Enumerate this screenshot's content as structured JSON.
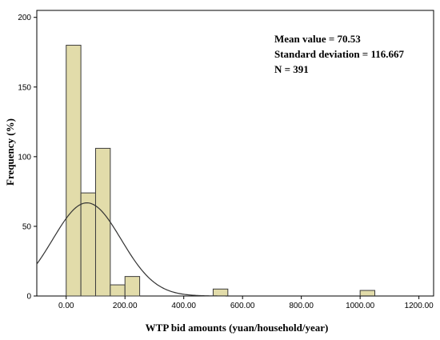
{
  "chart_data": {
    "type": "bar",
    "subtype": "histogram",
    "xlabel": "WTP bid amounts (yuan/household/year)",
    "ylabel": "Frequency (%)",
    "xlim": [
      -100,
      1250
    ],
    "ylim": [
      0,
      205
    ],
    "x_ticks": [
      {
        "value": 0,
        "label": "0.00"
      },
      {
        "value": 200,
        "label": "200.00"
      },
      {
        "value": 400,
        "label": "400.00"
      },
      {
        "value": 600,
        "label": "600.00"
      },
      {
        "value": 800,
        "label": "800.00"
      },
      {
        "value": 1000,
        "label": "1000.00"
      },
      {
        "value": 1200,
        "label": "1200.00"
      }
    ],
    "y_ticks": [
      {
        "value": 0,
        "label": "0"
      },
      {
        "value": 50,
        "label": "50"
      },
      {
        "value": 100,
        "label": "100"
      },
      {
        "value": 150,
        "label": "150"
      },
      {
        "value": 200,
        "label": "200"
      }
    ],
    "bin_width": 50,
    "bins": [
      {
        "start": 0,
        "end": 50,
        "value": 180
      },
      {
        "start": 50,
        "end": 100,
        "value": 74
      },
      {
        "start": 100,
        "end": 150,
        "value": 106
      },
      {
        "start": 150,
        "end": 200,
        "value": 8
      },
      {
        "start": 200,
        "end": 250,
        "value": 14
      },
      {
        "start": 500,
        "end": 550,
        "value": 5
      },
      {
        "start": 1000,
        "end": 1050,
        "value": 4
      }
    ],
    "normal_curve": {
      "mean": 70.53,
      "sd": 116.667,
      "n": 391
    },
    "annotations": [
      "Mean value = 70.53",
      "Standard deviation = 116.667",
      "N = 391"
    ],
    "grid": false,
    "bar_color": "#e2dcaa",
    "bar_edge_color": "#3c3c3c",
    "curve_color": "#333333"
  }
}
